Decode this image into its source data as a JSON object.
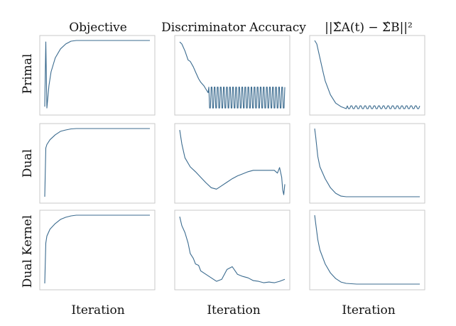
{
  "figure": {
    "column_titles": [
      "Objective",
      "Discriminator Accuracy",
      "||Σ̂A(t) − Σ̂B||²"
    ],
    "row_labels": [
      "Primal",
      "Dual",
      "Dual Kernel"
    ],
    "xlabel": "Iteration"
  },
  "style": {
    "line_color": "#3b6b8f",
    "frame_color": "#c9c9c9",
    "grid": false
  },
  "chart_data": [
    {
      "type": "line",
      "row": "Primal",
      "column": "Objective",
      "xlabel": "",
      "ylabel": "",
      "x": [
        0,
        0.01,
        0.02,
        0.04,
        0.06,
        0.1,
        0.15,
        0.2,
        0.25,
        0.3,
        0.4,
        0.5,
        0.6,
        0.7,
        0.8,
        0.9,
        1
      ],
      "values": [
        0.05,
        0.98,
        0.03,
        0.35,
        0.55,
        0.75,
        0.88,
        0.95,
        0.99,
        1,
        1,
        1,
        1,
        1,
        1,
        1,
        1
      ]
    },
    {
      "type": "line",
      "row": "Primal",
      "column": "Discriminator Accuracy",
      "xlabel": "",
      "ylabel": "",
      "x": [
        0,
        0.02,
        0.05,
        0.08,
        0.1,
        0.13,
        0.15,
        0.18,
        0.2,
        0.23,
        0.25,
        0.27
      ],
      "values": [
        0.98,
        0.95,
        0.85,
        0.72,
        0.7,
        0.62,
        0.55,
        0.45,
        0.4,
        0.35,
        0.3,
        0.25
      ],
      "oscillation": {
        "start": 0.27,
        "end": 1,
        "low": 0.03,
        "high": 0.33,
        "cycles": 25
      }
    },
    {
      "type": "line",
      "row": "Primal",
      "column": "||Σ̂A(t) − Σ̂B||²",
      "xlabel": "",
      "ylabel": "",
      "x": [
        0,
        0.02,
        0.05,
        0.08,
        0.1,
        0.15,
        0.2,
        0.25,
        0.3
      ],
      "values": [
        1,
        0.95,
        0.75,
        0.55,
        0.42,
        0.22,
        0.1,
        0.05,
        0.02
      ],
      "oscillation": {
        "start": 0.3,
        "end": 1,
        "low": 0.02,
        "high": 0.06,
        "cycles": 16
      }
    },
    {
      "type": "line",
      "row": "Dual",
      "column": "Objective",
      "xlabel": "",
      "ylabel": "",
      "x": [
        0,
        0.01,
        0.02,
        0.05,
        0.1,
        0.15,
        0.2,
        0.25,
        0.3,
        0.4,
        0.5,
        0.6,
        0.7,
        0.8,
        0.9,
        1
      ],
      "values": [
        0.02,
        0.72,
        0.77,
        0.84,
        0.91,
        0.96,
        0.98,
        0.995,
        1,
        1,
        1,
        1,
        1,
        1,
        1,
        1
      ]
    },
    {
      "type": "line",
      "row": "Dual",
      "column": "Discriminator Accuracy",
      "xlabel": "",
      "ylabel": "",
      "x": [
        0,
        0.02,
        0.05,
        0.1,
        0.15,
        0.2,
        0.25,
        0.3,
        0.35,
        0.4,
        0.45,
        0.5,
        0.55,
        0.6,
        0.65,
        0.7,
        0.75,
        0.8,
        0.85,
        0.9,
        0.93,
        0.95,
        0.97,
        0.98,
        0.99,
        1
      ],
      "values": [
        0.98,
        0.78,
        0.58,
        0.45,
        0.38,
        0.3,
        0.22,
        0.15,
        0.13,
        0.18,
        0.23,
        0.28,
        0.32,
        0.35,
        0.38,
        0.4,
        0.4,
        0.4,
        0.4,
        0.4,
        0.36,
        0.44,
        0.3,
        0.12,
        0.05,
        0.2
      ]
    },
    {
      "type": "line",
      "row": "Dual",
      "column": "||Σ̂A(t) − Σ̂B||²",
      "xlabel": "",
      "ylabel": "",
      "x": [
        0,
        0.01,
        0.03,
        0.05,
        0.1,
        0.15,
        0.2,
        0.25,
        0.3,
        0.4,
        0.5,
        0.6,
        0.7,
        0.8,
        0.9,
        1
      ],
      "values": [
        1,
        0.88,
        0.6,
        0.45,
        0.28,
        0.15,
        0.07,
        0.03,
        0.02,
        0.02,
        0.02,
        0.02,
        0.02,
        0.02,
        0.02,
        0.02
      ]
    },
    {
      "type": "line",
      "row": "Dual Kernel",
      "column": "Objective",
      "xlabel": "",
      "ylabel": "",
      "x": [
        0,
        0.01,
        0.02,
        0.05,
        0.1,
        0.15,
        0.2,
        0.25,
        0.3,
        0.4,
        0.5,
        0.6,
        0.7,
        0.8,
        0.9,
        1
      ],
      "values": [
        0.02,
        0.6,
        0.7,
        0.8,
        0.88,
        0.94,
        0.97,
        0.99,
        1,
        1,
        1,
        1,
        1,
        1,
        1,
        1
      ]
    },
    {
      "type": "line",
      "row": "Dual Kernel",
      "column": "Discriminator Accuracy",
      "xlabel": "",
      "ylabel": "",
      "x": [
        0,
        0.02,
        0.05,
        0.08,
        0.1,
        0.13,
        0.15,
        0.18,
        0.2,
        0.25,
        0.3,
        0.35,
        0.4,
        0.45,
        0.5,
        0.55,
        0.6,
        0.65,
        0.7,
        0.75,
        0.8,
        0.85,
        0.9,
        0.95,
        1
      ],
      "values": [
        0.98,
        0.85,
        0.75,
        0.6,
        0.45,
        0.38,
        0.3,
        0.28,
        0.2,
        0.15,
        0.1,
        0.05,
        0.08,
        0.22,
        0.26,
        0.15,
        0.12,
        0.1,
        0.06,
        0.05,
        0.03,
        0.04,
        0.03,
        0.05,
        0.08
      ]
    },
    {
      "type": "line",
      "row": "Dual Kernel",
      "column": "||Σ̂A(t) − Σ̂B||²",
      "xlabel": "",
      "ylabel": "",
      "x": [
        0,
        0.01,
        0.03,
        0.05,
        0.1,
        0.15,
        0.2,
        0.25,
        0.3,
        0.4,
        0.5,
        0.6,
        0.7,
        0.8,
        0.9,
        1
      ],
      "values": [
        1,
        0.88,
        0.65,
        0.5,
        0.3,
        0.17,
        0.09,
        0.04,
        0.02,
        0.01,
        0.01,
        0.01,
        0.01,
        0.01,
        0.01,
        0.01
      ]
    }
  ]
}
